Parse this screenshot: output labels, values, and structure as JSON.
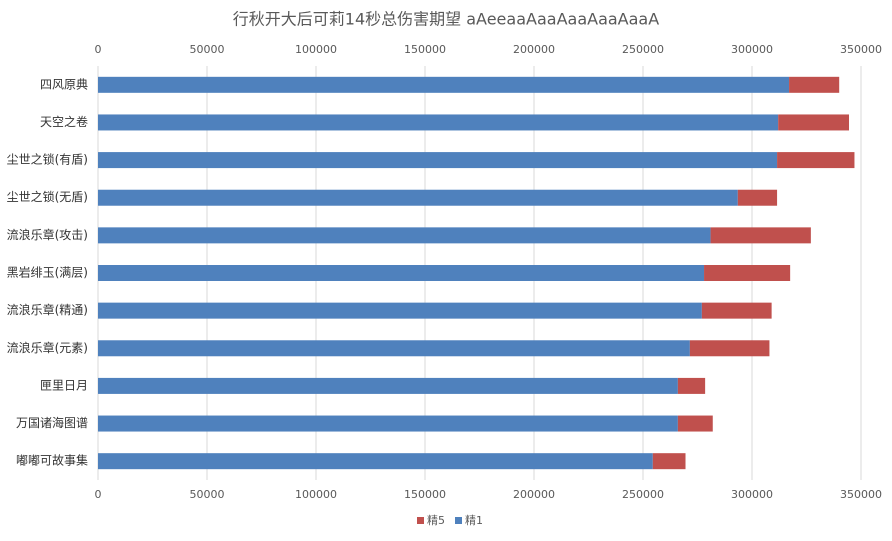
{
  "chart_data": {
    "type": "stacked_bar_horizontal",
    "title": "行秋开大后可莉14秒总伤害期望 aAeeaaAaaAaaAaaAaaA",
    "categories": [
      "四风原典",
      "天空之卷",
      "尘世之锁(有盾)",
      "尘世之锁(无盾)",
      "流浪乐章(攻击)",
      "黑岩绯玉(满层)",
      "流浪乐章(精通)",
      "流浪乐章(元素)",
      "匣里日月",
      "万国诸海图谱",
      "嘟嘟可故事集"
    ],
    "series": [
      {
        "name": "精1",
        "color": "#4f81bd",
        "values": [
          317000,
          312000,
          311500,
          293500,
          281000,
          278000,
          277000,
          271500,
          266000,
          266000,
          254500
        ]
      },
      {
        "name": "精5",
        "color": "#c0504d",
        "values": [
          23000,
          32500,
          35500,
          18000,
          46000,
          39500,
          32000,
          36500,
          12500,
          16000,
          15000
        ]
      }
    ],
    "xlim": [
      0,
      350000
    ],
    "xticks": [
      0,
      50000,
      100000,
      150000,
      200000,
      250000,
      300000,
      350000
    ],
    "grid": true,
    "legend": "bottom"
  }
}
